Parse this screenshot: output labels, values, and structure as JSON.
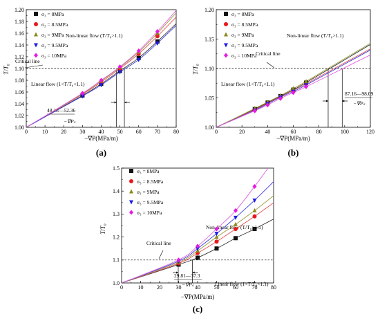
{
  "chart_data": [
    {
      "panel_label": "(a)",
      "type": "line",
      "xlabel": "−∇P(MPa/m)",
      "ylabel": "T/T₀",
      "xlim": [
        0,
        80
      ],
      "ylim": [
        1.0,
        1.2
      ],
      "x_ticks": [
        "0",
        "10",
        "20",
        "30",
        "40",
        "50",
        "60",
        "70",
        "80"
      ],
      "y_ticks": [
        "1.00",
        "1.02",
        "1.04",
        "1.06",
        "1.08",
        "1.10",
        "1.12",
        "1.14",
        "1.16",
        "1.18",
        "1.20"
      ],
      "critical_value": 1.1,
      "annotations": {
        "nonlinear": "Non-linear flow (T/T₀>1.1)",
        "linear": "Linear flow (1<T/T₀<1.1)",
        "critical": "Critical line",
        "range": "48.18—52.36",
        "range_sub": "−∇Pₛ"
      },
      "range_x": [
        48.18,
        52.36
      ],
      "x": [
        30,
        40,
        50,
        60,
        70
      ],
      "series": [
        {
          "name": "σ₃ = 8MPa",
          "values": [
            1.054,
            1.074,
            1.096,
            1.118,
            1.146
          ]
        },
        {
          "name": "σ₃ = 8.5MPa",
          "values": [
            1.056,
            1.077,
            1.1,
            1.125,
            1.155
          ]
        },
        {
          "name": "σ₃ = 9MPa",
          "values": [
            1.057,
            1.079,
            1.102,
            1.128,
            1.16
          ]
        },
        {
          "name": "σ₃ = 9.5MPa",
          "values": [
            1.053,
            1.072,
            1.094,
            1.115,
            1.143
          ]
        },
        {
          "name": "σ₃ = 10MPa",
          "values": [
            1.058,
            1.08,
            1.103,
            1.13,
            1.163
          ]
        }
      ]
    },
    {
      "panel_label": "(b)",
      "type": "line",
      "xlabel": "−∇P(MPa/m)",
      "ylabel": "T/T₀",
      "xlim": [
        0,
        120
      ],
      "ylim": [
        1.0,
        1.2
      ],
      "x_ticks": [
        "0",
        "20",
        "40",
        "60",
        "80",
        "100",
        "120"
      ],
      "y_ticks": [
        "1.00",
        "1.05",
        "1.10",
        "1.15",
        "1.20"
      ],
      "critical_value": 1.1,
      "annotations": {
        "nonlinear": "Non-linear flow (T/T₀>1.1)",
        "linear": "Linear flow (1<T/T₀<1.1)",
        "critical": "Critical line",
        "range": "87.16—98.09",
        "range_sub": "−∇Pₛ"
      },
      "range_x": [
        87.16,
        98.09
      ],
      "x": [
        30,
        40,
        50,
        60,
        70
      ],
      "series": [
        {
          "name": "σ₃ = 8MPa",
          "values": [
            1.031,
            1.042,
            1.053,
            1.064,
            1.076
          ]
        },
        {
          "name": "σ₃ = 8.5MPa",
          "values": [
            1.03,
            1.041,
            1.052,
            1.063,
            1.074
          ]
        },
        {
          "name": "σ₃ = 9MPa",
          "values": [
            1.032,
            1.043,
            1.054,
            1.066,
            1.078
          ]
        },
        {
          "name": "σ₃ = 9.5MPa",
          "values": [
            1.029,
            1.04,
            1.051,
            1.061,
            1.072
          ]
        },
        {
          "name": "σ₃ = 10MPa",
          "values": [
            1.028,
            1.038,
            1.049,
            1.059,
            1.069
          ]
        }
      ]
    },
    {
      "panel_label": "(c)",
      "type": "line",
      "xlabel": "−∇P(MPa/m)",
      "ylabel": "T/T₀",
      "xlim": [
        0,
        80
      ],
      "ylim": [
        1.0,
        1.5
      ],
      "x_ticks": [
        "0",
        "10",
        "20",
        "30",
        "40",
        "50",
        "60",
        "70",
        "80"
      ],
      "y_ticks": [
        "1.0",
        "1.1",
        "1.2",
        "1.3",
        "1.4",
        "1.5"
      ],
      "critical_value": 1.1,
      "annotations": {
        "nonlinear": "Non-linear flow (T/T₀>1.1)",
        "linear": "Linear flow (1<T/T₀<1.1)",
        "critical": "Critical line",
        "range": "29.81—37.3",
        "range_sub": "−∇Pₛ"
      },
      "range_x": [
        29.81,
        37.3
      ],
      "x": [
        30,
        40,
        50,
        60,
        70
      ],
      "series": [
        {
          "name": "σ₃ = 8MPa",
          "values": [
            1.08,
            1.11,
            1.15,
            1.195,
            1.235
          ]
        },
        {
          "name": "σ₃ = 8.5MPa",
          "values": [
            1.085,
            1.13,
            1.18,
            1.235,
            1.29
          ]
        },
        {
          "name": "σ₃ = 9MPa",
          "values": [
            1.09,
            1.14,
            1.2,
            1.255,
            1.315
          ]
        },
        {
          "name": "σ₃ = 9.5MPa",
          "values": [
            1.095,
            1.15,
            1.215,
            1.285,
            1.36
          ]
        },
        {
          "name": "σ₃ = 10MPa",
          "values": [
            1.1,
            1.16,
            1.235,
            1.315,
            1.42
          ]
        }
      ]
    }
  ],
  "style": {
    "series_colors": [
      "#111111",
      "#e8191e",
      "#8a8a1a",
      "#1a1ae6",
      "#e619e6"
    ],
    "series_markers": [
      "square",
      "circle",
      "triangle-up",
      "triangle-down",
      "diamond"
    ],
    "line_colors": [
      "#333333",
      "#e05050",
      "#9a9a40",
      "#4040e0",
      "#e060e0"
    ]
  }
}
